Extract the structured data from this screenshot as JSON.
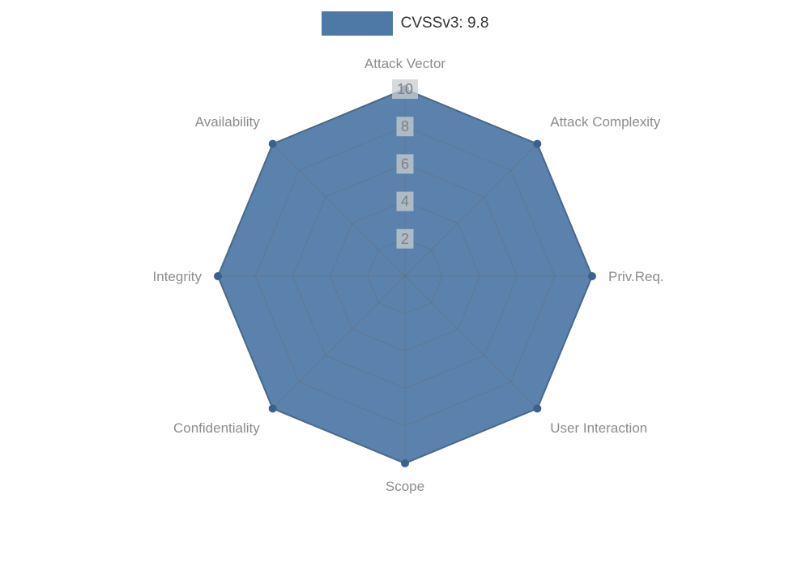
{
  "legend": {
    "label": "CVSSv3: 9.8"
  },
  "colors": {
    "fill": "#4e79a7",
    "fill_opacity": 0.93,
    "outline": "#41688f",
    "marker": "#3b628c",
    "grid": "#6b6b6b",
    "grid_opacity": 0.45,
    "axis_label": "#8c8c8c",
    "tick_label": "#7f7f7f",
    "tick_box": "#c9cdd2",
    "tick_box_opacity": 0.75
  },
  "chart_data": {
    "type": "radar",
    "title": "CVSSv3: 9.8",
    "categories": [
      "Attack Vector",
      "Attack Complexity",
      "Priv.Req.",
      "User Interaction",
      "Scope",
      "Confidentiality",
      "Integrity",
      "Availability"
    ],
    "series": [
      {
        "name": "CVSSv3: 9.8",
        "values": [
          10,
          10,
          10,
          10,
          10,
          10,
          10,
          10
        ]
      }
    ],
    "ticks": [
      2,
      4,
      6,
      8,
      10
    ],
    "rmax": 10,
    "grid": true,
    "legend_position": "top-center"
  }
}
